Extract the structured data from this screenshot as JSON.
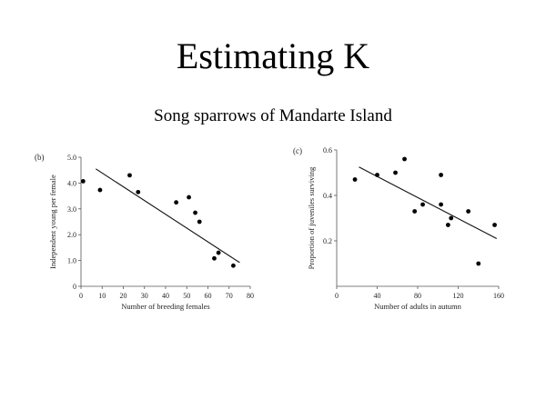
{
  "slide": {
    "title": "Estimating K",
    "subtitle": "Song sparrows of Mandarte Island"
  },
  "chart_data": [
    {
      "type": "scatter",
      "panel_label": "(b)",
      "title": "",
      "xlabel": "Number of breeding females",
      "ylabel": "Independent young per female",
      "xlim": [
        0,
        80
      ],
      "ylim": [
        0,
        5.0
      ],
      "xticks": [
        0,
        10,
        20,
        30,
        40,
        50,
        60,
        70,
        80
      ],
      "yticks": [
        0,
        1.0,
        2.0,
        3.0,
        4.0,
        5.0
      ],
      "ytick_labels": [
        "0",
        "1.0",
        "2.0",
        "3.0",
        "4.0",
        "5.0"
      ],
      "grid": false,
      "points": [
        {
          "x": 1,
          "y": 4.07
        },
        {
          "x": 9,
          "y": 3.73
        },
        {
          "x": 23,
          "y": 4.3
        },
        {
          "x": 27,
          "y": 3.65
        },
        {
          "x": 45,
          "y": 3.25
        },
        {
          "x": 51,
          "y": 3.45
        },
        {
          "x": 54,
          "y": 2.85
        },
        {
          "x": 56,
          "y": 2.5
        },
        {
          "x": 63,
          "y": 1.08
        },
        {
          "x": 65,
          "y": 1.3
        },
        {
          "x": 72,
          "y": 0.8
        }
      ],
      "trendline": {
        "x": [
          7,
          75
        ],
        "y": [
          4.55,
          0.92
        ]
      }
    },
    {
      "type": "scatter",
      "panel_label": "(c)",
      "title": "",
      "xlabel": "Number of adults in autumn",
      "ylabel": "Proportion of juveniles surviving",
      "xlim": [
        0,
        160
      ],
      "ylim": [
        0,
        0.6
      ],
      "xticks": [
        0,
        40,
        80,
        120,
        160
      ],
      "yticks": [
        0.2,
        0.4,
        0.6
      ],
      "ytick_labels": [
        "0.2",
        "0.4",
        "0.6"
      ],
      "grid": false,
      "points": [
        {
          "x": 18,
          "y": 0.47
        },
        {
          "x": 40,
          "y": 0.49
        },
        {
          "x": 58,
          "y": 0.5
        },
        {
          "x": 67,
          "y": 0.56
        },
        {
          "x": 77,
          "y": 0.33
        },
        {
          "x": 85,
          "y": 0.36
        },
        {
          "x": 103,
          "y": 0.49
        },
        {
          "x": 103,
          "y": 0.36
        },
        {
          "x": 110,
          "y": 0.27
        },
        {
          "x": 113,
          "y": 0.3
        },
        {
          "x": 130,
          "y": 0.33
        },
        {
          "x": 140,
          "y": 0.1
        },
        {
          "x": 156,
          "y": 0.27
        }
      ],
      "trendline": {
        "x": [
          22,
          158
        ],
        "y": [
          0.525,
          0.21
        ]
      }
    }
  ]
}
